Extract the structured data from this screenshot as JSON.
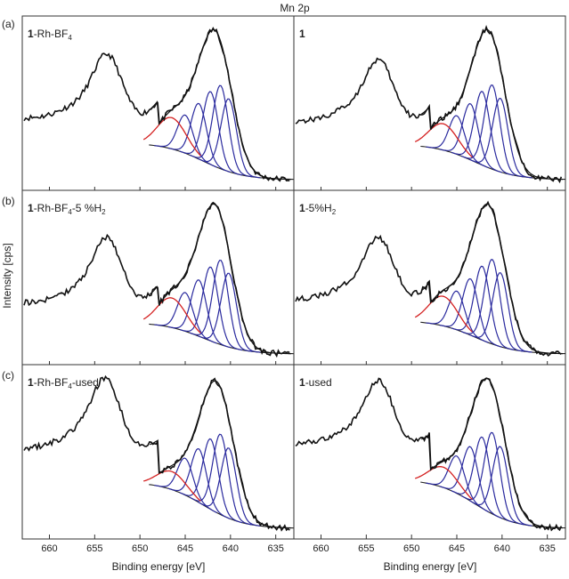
{
  "figure": {
    "title": "Mn 2p",
    "ylabel": "Intensity [cps]",
    "xlabel": "Binding energy [eV]",
    "row_labels": [
      "(a)",
      "(b)",
      "(c)"
    ]
  },
  "chart_data": {
    "type": "line",
    "title": "Mn 2p",
    "xlabel": "Binding energy [eV]",
    "ylabel": "Intensity [cps]",
    "xlim": [
      663,
      633
    ],
    "x_ticks": [
      660,
      655,
      650,
      645,
      640,
      635
    ],
    "x_tick_labels": [
      "660",
      "655",
      "650",
      "645",
      "640",
      "635"
    ],
    "x_axis_reversed": true,
    "grid": false,
    "legend": "none",
    "colors": {
      "data": "#111111",
      "component": "#2a2a9e",
      "satellite": "#d42020",
      "background": "#222222"
    },
    "panels": [
      {
        "row": "(a)",
        "col": 0,
        "label_bold": "1",
        "label_rest": "-Rh-BF",
        "label_sub": "4",
        "label_tail": "",
        "main_peak": 641.5,
        "main_height": 1.0,
        "satellite": 646.5,
        "sat_height": 0.3,
        "peak_2p12": 653.5,
        "p12_height": 0.55,
        "low_be_level": 0.28,
        "components": [
          640.2,
          641.1,
          642.2,
          643.5,
          645.0
        ]
      },
      {
        "row": "(a)",
        "col": 1,
        "label_bold": "1",
        "label_rest": "",
        "label_sub": "",
        "label_tail": "",
        "main_peak": 641.3,
        "main_height": 1.0,
        "satellite": 646.5,
        "sat_height": 0.25,
        "peak_2p12": 653.5,
        "p12_height": 0.52,
        "low_be_level": 0.26,
        "components": [
          640.2,
          641.1,
          642.2,
          643.5,
          645.0
        ]
      },
      {
        "row": "(b)",
        "col": 0,
        "label_bold": "1",
        "label_rest": "-Rh-BF",
        "label_sub": "4",
        "label_tail": "-5 %H",
        "label_sub2": "2",
        "main_peak": 641.5,
        "main_height": 1.0,
        "satellite": 646.5,
        "sat_height": 0.28,
        "peak_2p12": 653.5,
        "p12_height": 0.55,
        "low_be_level": 0.22,
        "components": [
          640.2,
          641.1,
          642.2,
          643.5,
          645.0
        ]
      },
      {
        "row": "(b)",
        "col": 1,
        "label_bold": "1",
        "label_rest": "-5%H",
        "label_sub": "2",
        "label_tail": "",
        "main_peak": 641.3,
        "main_height": 1.0,
        "satellite": 646.5,
        "sat_height": 0.28,
        "peak_2p12": 653.5,
        "p12_height": 0.52,
        "low_be_level": 0.24,
        "components": [
          640.2,
          641.1,
          642.2,
          643.5,
          645.0
        ]
      },
      {
        "row": "(c)",
        "col": 0,
        "label_bold": "1",
        "label_rest": "-Rh-BF",
        "label_sub": "4",
        "label_tail": "-used",
        "main_peak": 641.3,
        "main_height": 1.0,
        "satellite": 646.5,
        "sat_height": 0.18,
        "peak_2p12": 653.7,
        "p12_height": 0.62,
        "low_be_level": 0.4,
        "components": [
          640.2,
          641.1,
          642.2,
          643.5,
          645.0
        ]
      },
      {
        "row": "(c)",
        "col": 1,
        "label_bold": "1",
        "label_rest": "-used",
        "label_sub": "",
        "label_tail": "",
        "main_peak": 641.3,
        "main_height": 1.0,
        "satellite": 646.5,
        "sat_height": 0.2,
        "peak_2p12": 653.5,
        "p12_height": 0.55,
        "low_be_level": 0.42,
        "components": [
          640.2,
          641.1,
          642.2,
          643.5,
          645.0
        ]
      }
    ]
  }
}
